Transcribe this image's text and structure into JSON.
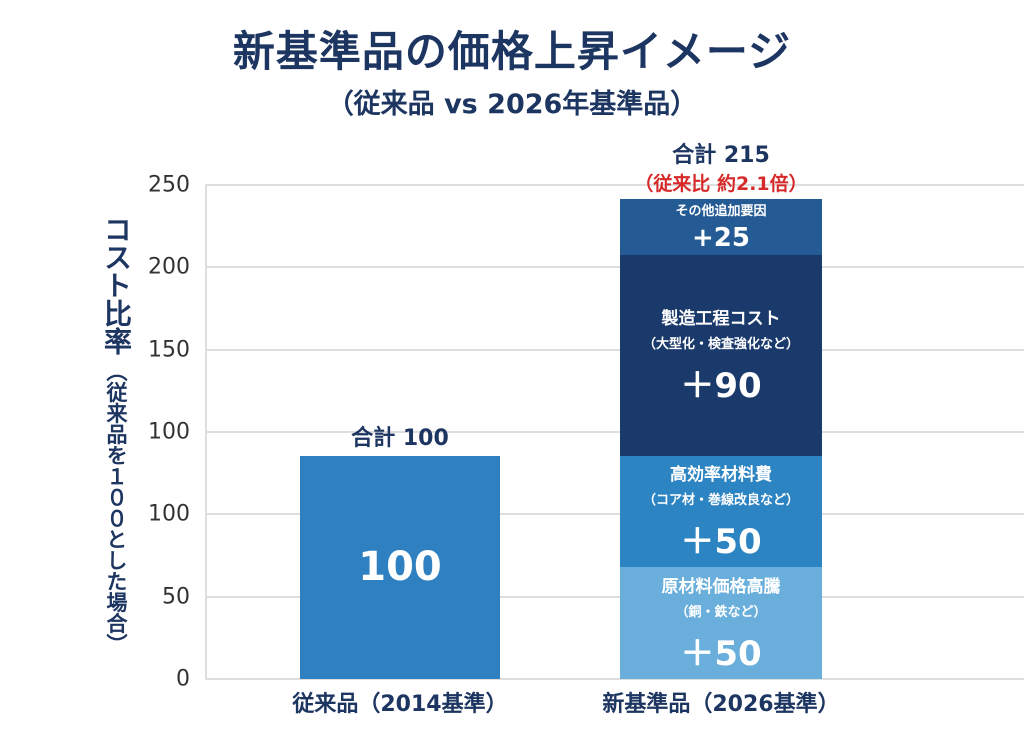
{
  "chart_data": {
    "type": "stacked-bar",
    "title": "新基準品の価格上昇イメージ",
    "subtitle": "（従来品 vs 2026年基準品）",
    "ylabel": "コスト比率",
    "ylabel_note": "（従来品を１００とした場合）",
    "ytick_labels": [
      "0",
      "50",
      "100",
      "100",
      "150",
      "200",
      "250"
    ],
    "grid": true,
    "categories": [
      "従来品（2014基準）",
      "新基準品（2026基準）"
    ],
    "bars": [
      {
        "category": "従来品（2014基準）",
        "total_label": "合計 100",
        "segments": [
          {
            "name": "",
            "note": "",
            "value": 100,
            "value_label": "100",
            "color": "#2e80c1"
          }
        ]
      },
      {
        "category": "新基準品（2026基準）",
        "total_label": "合計 215",
        "ratio_label": "（従来比 約2.1倍）",
        "segments": [
          {
            "name": "原材料価格高騰",
            "note": "（銅・鉄など）",
            "value": 50,
            "value_label": "＋50",
            "color": "#6aafdc"
          },
          {
            "name": "高効率材料費",
            "note": "（コア材・巻線改良など）",
            "value": 50,
            "value_label": "＋50",
            "color": "#2d84c3"
          },
          {
            "name": "製造工程コスト",
            "note": "（大型化・検査強化など）",
            "value": 90,
            "value_label": "＋90",
            "color": "#1b3a6c"
          },
          {
            "name": "その他追加要因",
            "note": "",
            "value": 25,
            "value_label": "+25",
            "color": "#255b95"
          }
        ]
      }
    ],
    "colors": {
      "title": "#1d3561",
      "ratio": "#d62a2a"
    }
  }
}
